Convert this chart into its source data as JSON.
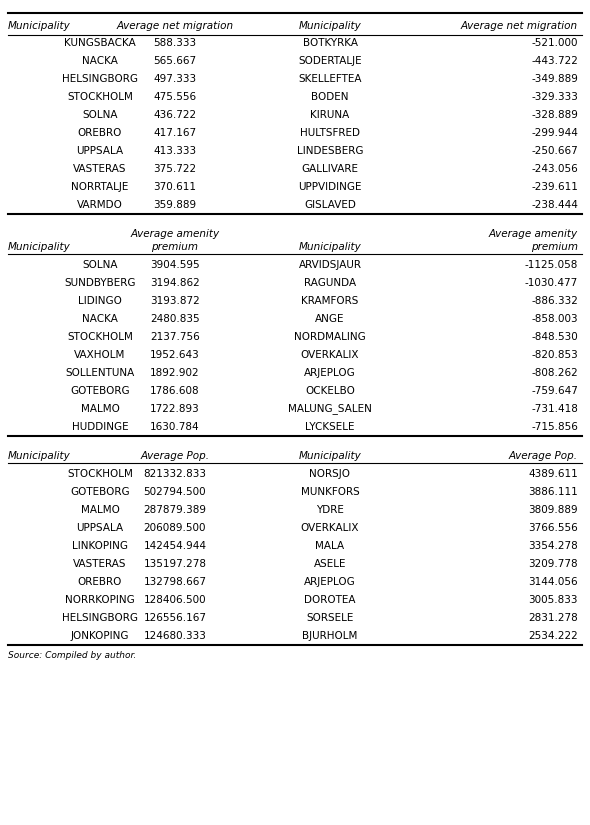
{
  "table1_left": [
    [
      "KUNGSBACKA",
      "588.333"
    ],
    [
      "NACKA",
      "565.667"
    ],
    [
      "HELSINGBORG",
      "497.333"
    ],
    [
      "STOCKHOLM",
      "475.556"
    ],
    [
      "SOLNA",
      "436.722"
    ],
    [
      "OREBRO",
      "417.167"
    ],
    [
      "UPPSALA",
      "413.333"
    ],
    [
      "VASTERAS",
      "375.722"
    ],
    [
      "NORRTALJE",
      "370.611"
    ],
    [
      "VARMDO",
      "359.889"
    ]
  ],
  "table1_right": [
    [
      "BOTKYRKA",
      "-521.000"
    ],
    [
      "SODERTALJE",
      "-443.722"
    ],
    [
      "SKELLEFTEA",
      "-349.889"
    ],
    [
      "BODEN",
      "-329.333"
    ],
    [
      "KIRUNA",
      "-328.889"
    ],
    [
      "HULTSFRED",
      "-299.944"
    ],
    [
      "LINDESBERG",
      "-250.667"
    ],
    [
      "GALLIVARE",
      "-243.056"
    ],
    [
      "UPPVIDINGE",
      "-239.611"
    ],
    [
      "GISLAVED",
      "-238.444"
    ]
  ],
  "table2_left": [
    [
      "SOLNA",
      "3904.595"
    ],
    [
      "SUNDBYBERG",
      "3194.862"
    ],
    [
      "LIDINGO",
      "3193.872"
    ],
    [
      "NACKA",
      "2480.835"
    ],
    [
      "STOCKHOLM",
      "2137.756"
    ],
    [
      "VAXHOLM",
      "1952.643"
    ],
    [
      "SOLLENTUNA",
      "1892.902"
    ],
    [
      "GOTEBORG",
      "1786.608"
    ],
    [
      "MALMO",
      "1722.893"
    ],
    [
      "HUDDINGE",
      "1630.784"
    ]
  ],
  "table2_right": [
    [
      "ARVIDSJAUR",
      "-1125.058"
    ],
    [
      "RAGUNDA",
      "-1030.477"
    ],
    [
      "KRAMFORS",
      "-886.332"
    ],
    [
      "ANGE",
      "-858.003"
    ],
    [
      "NORDMALING",
      "-848.530"
    ],
    [
      "OVERKALIX",
      "-820.853"
    ],
    [
      "ARJEPLOG",
      "-808.262"
    ],
    [
      "OCKELBO",
      "-759.647"
    ],
    [
      "MALUNG_SALEN",
      "-731.418"
    ],
    [
      "LYCKSELE",
      "-715.856"
    ]
  ],
  "table3_left": [
    [
      "STOCKHOLM",
      "821332.833"
    ],
    [
      "GOTEBORG",
      "502794.500"
    ],
    [
      "MALMO",
      "287879.389"
    ],
    [
      "UPPSALA",
      "206089.500"
    ],
    [
      "LINKOPING",
      "142454.944"
    ],
    [
      "VASTERAS",
      "135197.278"
    ],
    [
      "OREBRO",
      "132798.667"
    ],
    [
      "NORRKOPING",
      "128406.500"
    ],
    [
      "HELSINGBORG",
      "126556.167"
    ],
    [
      "JONKOPING",
      "124680.333"
    ]
  ],
  "table3_right": [
    [
      "NORSJO",
      "4389.611"
    ],
    [
      "MUNKFORS",
      "3886.111"
    ],
    [
      "YDRE",
      "3809.889"
    ],
    [
      "OVERKALIX",
      "3766.556"
    ],
    [
      "MALA",
      "3354.278"
    ],
    [
      "ASELE",
      "3209.778"
    ],
    [
      "ARJEPLOG",
      "3144.056"
    ],
    [
      "DOROTEA",
      "3005.833"
    ],
    [
      "SORSELE",
      "2831.278"
    ],
    [
      "BJURHOLM",
      "2534.222"
    ]
  ],
  "source_text": "Source: Compiled by author.",
  "bg_color": "#ffffff",
  "font_size": 7.5,
  "header_font_size": 7.5
}
